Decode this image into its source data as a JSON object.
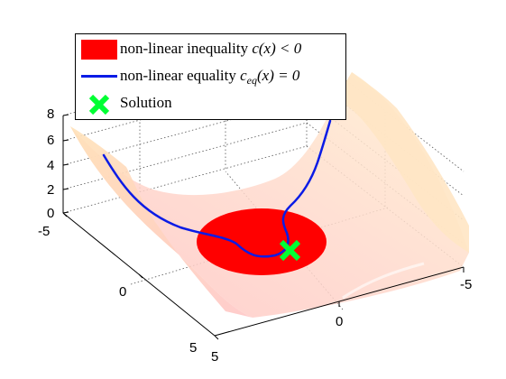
{
  "chart_data": {
    "type": "surface",
    "axes": {
      "x_ticks": [
        "-5",
        "0",
        "5"
      ],
      "y_ticks": [
        "-5",
        "0",
        "5"
      ],
      "z_ticks": [
        "0",
        "2",
        "4",
        "6",
        "8"
      ],
      "xlim": [
        -5,
        5
      ],
      "ylim": [
        -5,
        5
      ],
      "zlim": [
        0,
        8
      ],
      "grid": true
    },
    "legend": {
      "placement": "top-left",
      "entries": [
        {
          "text": "non-linear inequality c(x) < 0",
          "color": "#ff0000",
          "kind": "patch"
        },
        {
          "text": "non-linear equality c_eq(x) = 0",
          "color": "#0a1be6",
          "kind": "line"
        },
        {
          "text": "Solution",
          "color": "#00ff33",
          "kind": "marker"
        }
      ]
    },
    "surface": {
      "colormap": [
        "#ffc7c7",
        "#ffe6c2",
        "#fff0cf"
      ],
      "alpha": 0.6
    },
    "inequality_region": {
      "shape": "disk",
      "center": [
        0,
        0
      ],
      "color": "#ff0000"
    },
    "equality_curve": {
      "color": "#0a1be6"
    },
    "solution": {
      "marker": "x",
      "color": "#00ff33"
    }
  },
  "legend_text": {
    "inequality_pre": "non-linear inequality ",
    "inequality_math": "c(x) < 0",
    "equality_pre": "non-linear equality ",
    "equality_math_c": "c",
    "equality_math_sub": "eq",
    "equality_math_post": "(x) = 0",
    "solution": "Solution"
  }
}
